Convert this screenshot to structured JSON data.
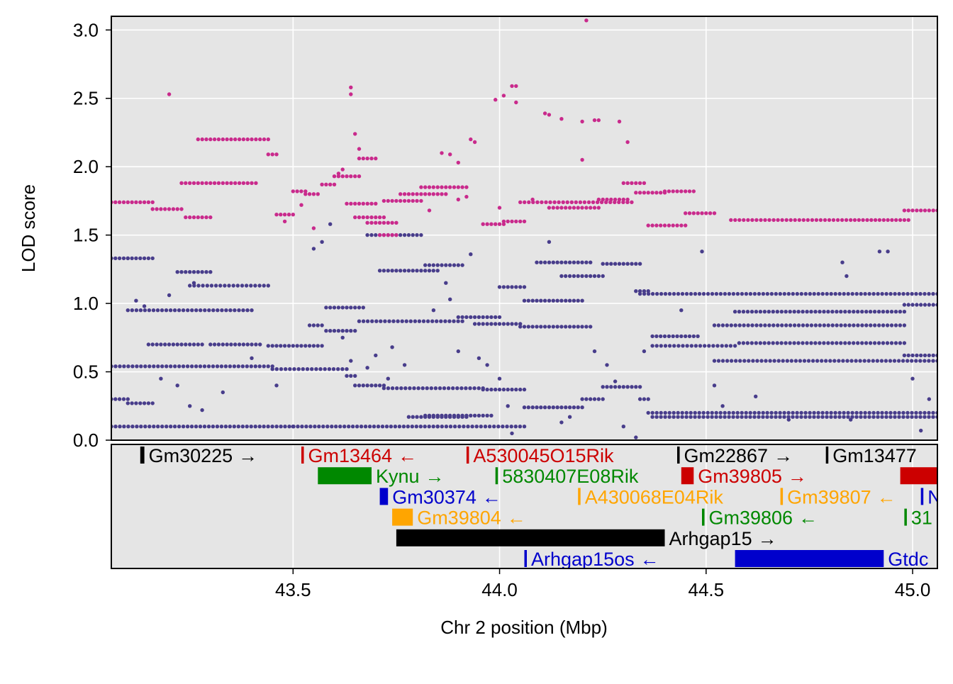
{
  "chart_data": [
    {
      "type": "scatter",
      "panel": "lod",
      "xlabel": "Chr 2 position (Mbp)",
      "ylabel": "LOD score",
      "xlim": [
        43.06,
        45.06
      ],
      "ylim": [
        0,
        3.1
      ],
      "x_ticks": [
        "43.5",
        "44.0",
        "44.5",
        "45.0"
      ],
      "y_ticks": [
        "0.0",
        "0.5",
        "1.0",
        "1.5",
        "2.0",
        "2.5",
        "3.0"
      ],
      "grid": true,
      "background": "#e5e5e5",
      "colors": {
        "highlight": "#c92a8c",
        "other": "#483d8b"
      },
      "series": [
        {
          "color": "#c92a8c",
          "segments": [
            [
              43.06,
              43.16,
              1.74
            ],
            [
              43.16,
              43.23,
              1.69
            ],
            [
              43.23,
              43.31,
              1.88
            ],
            [
              43.24,
              43.3,
              1.63
            ],
            [
              43.27,
              43.44,
              2.2
            ],
            [
              43.32,
              43.41,
              1.88
            ],
            [
              43.44,
              43.46,
              2.09
            ],
            [
              43.46,
              43.5,
              1.65
            ],
            [
              43.5,
              43.53,
              1.82
            ],
            [
              43.53,
              43.56,
              1.8
            ],
            [
              43.57,
              43.6,
              1.87
            ],
            [
              43.6,
              43.66,
              1.93
            ],
            [
              43.63,
              43.7,
              1.73
            ],
            [
              43.65,
              43.72,
              1.63
            ],
            [
              43.66,
              43.7,
              2.06
            ],
            [
              43.68,
              43.75,
              1.59
            ],
            [
              43.71,
              43.75,
              1.5
            ],
            [
              43.72,
              43.81,
              1.75
            ],
            [
              43.76,
              43.87,
              1.8
            ],
            [
              43.81,
              43.92,
              1.85
            ],
            [
              43.96,
              44.01,
              1.58
            ],
            [
              44.01,
              44.06,
              1.6
            ],
            [
              44.05,
              44.32,
              1.74
            ],
            [
              44.12,
              44.24,
              1.7
            ],
            [
              44.24,
              44.31,
              1.76
            ],
            [
              44.3,
              44.35,
              1.88
            ],
            [
              44.33,
              44.4,
              1.81
            ],
            [
              44.36,
              44.45,
              1.57
            ],
            [
              44.4,
              44.47,
              1.82
            ],
            [
              44.45,
              44.52,
              1.66
            ],
            [
              44.56,
              44.85,
              1.61
            ],
            [
              44.86,
              44.99,
              1.61
            ],
            [
              44.98,
              45.06,
              1.68
            ]
          ],
          "points": [
            [
              43.2,
              2.53
            ],
            [
              43.64,
              2.58
            ],
            [
              43.64,
              2.53
            ],
            [
              43.65,
              2.24
            ],
            [
              43.66,
              2.13
            ],
            [
              43.86,
              2.1
            ],
            [
              43.88,
              2.09
            ],
            [
              43.9,
              2.03
            ],
            [
              43.93,
              2.2
            ],
            [
              43.94,
              2.18
            ],
            [
              43.99,
              2.49
            ],
            [
              44.01,
              2.52
            ],
            [
              44.03,
              2.59
            ],
            [
              44.04,
              2.59
            ],
            [
              44.04,
              2.47
            ],
            [
              44.11,
              2.39
            ],
            [
              44.12,
              2.38
            ],
            [
              44.15,
              2.35
            ],
            [
              44.2,
              2.33
            ],
            [
              44.23,
              2.34
            ],
            [
              44.24,
              2.34
            ],
            [
              44.29,
              2.33
            ],
            [
              44.31,
              2.18
            ],
            [
              44.21,
              3.07
            ],
            [
              44.2,
              2.05
            ],
            [
              43.48,
              1.6
            ],
            [
              43.52,
              1.72
            ],
            [
              43.55,
              1.55
            ],
            [
              43.61,
              1.95
            ],
            [
              43.62,
              1.98
            ],
            [
              43.83,
              1.68
            ],
            [
              43.9,
              1.76
            ],
            [
              43.92,
              1.78
            ],
            [
              44.0,
              1.7
            ],
            [
              44.08,
              1.76
            ]
          ]
        },
        {
          "color": "#483d8b",
          "segments": [
            [
              43.06,
              43.45,
              0.54
            ],
            [
              43.45,
              43.63,
              0.52
            ],
            [
              43.63,
              43.65,
              0.47
            ],
            [
              43.65,
              43.72,
              0.4
            ],
            [
              43.72,
              43.96,
              0.38
            ],
            [
              43.96,
              44.06,
              0.37
            ],
            [
              44.06,
              44.2,
              0.24
            ],
            [
              44.2,
              44.25,
              0.3
            ],
            [
              44.25,
              44.34,
              0.39
            ],
            [
              44.34,
              44.36,
              0.3
            ],
            [
              44.36,
              45.06,
              0.2
            ],
            [
              43.06,
              43.85,
              0.1
            ],
            [
              43.85,
              44.06,
              0.1
            ],
            [
              43.06,
              43.1,
              1.33
            ],
            [
              43.1,
              43.16,
              1.33
            ],
            [
              43.22,
              43.3,
              1.23
            ],
            [
              43.25,
              43.44,
              1.13
            ],
            [
              43.1,
              43.4,
              0.95
            ],
            [
              43.15,
              43.28,
              0.7
            ],
            [
              43.3,
              43.42,
              0.7
            ],
            [
              43.06,
              43.1,
              0.3
            ],
            [
              43.1,
              43.16,
              0.27
            ],
            [
              43.44,
              43.57,
              0.69
            ],
            [
              43.54,
              43.57,
              0.84
            ],
            [
              43.58,
              43.65,
              0.8
            ],
            [
              43.58,
              43.67,
              0.97
            ],
            [
              43.66,
              43.91,
              0.87
            ],
            [
              43.71,
              43.85,
              1.24
            ],
            [
              43.68,
              43.81,
              1.5
            ],
            [
              43.82,
              43.91,
              1.28
            ],
            [
              43.78,
              43.92,
              0.17
            ],
            [
              43.82,
              43.98,
              0.18
            ],
            [
              43.9,
              44.0,
              0.9
            ],
            [
              43.94,
              44.05,
              0.85
            ],
            [
              44.05,
              44.22,
              0.83
            ],
            [
              44.0,
              44.06,
              1.12
            ],
            [
              44.06,
              44.2,
              1.02
            ],
            [
              44.09,
              44.22,
              1.3
            ],
            [
              44.15,
              44.25,
              1.2
            ],
            [
              44.25,
              44.34,
              1.29
            ],
            [
              44.33,
              44.36,
              1.09
            ],
            [
              44.34,
              45.06,
              1.07
            ],
            [
              44.37,
              44.48,
              0.76
            ],
            [
              44.37,
              44.57,
              0.69
            ],
            [
              44.52,
              44.98,
              0.84
            ],
            [
              44.58,
              44.98,
              0.71
            ],
            [
              44.52,
              45.06,
              0.58
            ],
            [
              44.57,
              44.98,
              0.94
            ],
            [
              44.98,
              45.06,
              0.99
            ],
            [
              44.98,
              45.06,
              0.62
            ],
            [
              44.37,
              45.06,
              0.17
            ]
          ],
          "points": [
            [
              43.2,
              1.06
            ],
            [
              43.26,
              1.15
            ],
            [
              43.14,
              0.98
            ],
            [
              43.12,
              1.02
            ],
            [
              43.18,
              0.45
            ],
            [
              43.22,
              0.4
            ],
            [
              43.25,
              0.25
            ],
            [
              43.28,
              0.22
            ],
            [
              43.33,
              0.35
            ],
            [
              43.4,
              0.6
            ],
            [
              43.46,
              0.4
            ],
            [
              43.5,
              0.1
            ],
            [
              43.55,
              1.4
            ],
            [
              43.57,
              1.45
            ],
            [
              43.59,
              1.58
            ],
            [
              43.62,
              0.75
            ],
            [
              43.64,
              0.58
            ],
            [
              43.68,
              0.53
            ],
            [
              43.7,
              0.62
            ],
            [
              43.73,
              0.45
            ],
            [
              43.74,
              0.68
            ],
            [
              43.77,
              0.55
            ],
            [
              43.84,
              0.95
            ],
            [
              43.87,
              1.15
            ],
            [
              43.88,
              1.03
            ],
            [
              43.9,
              0.65
            ],
            [
              43.93,
              1.36
            ],
            [
              43.95,
              0.6
            ],
            [
              43.97,
              0.55
            ],
            [
              44.0,
              0.45
            ],
            [
              44.02,
              0.25
            ],
            [
              44.03,
              0.05
            ],
            [
              44.12,
              1.45
            ],
            [
              44.15,
              0.13
            ],
            [
              44.17,
              0.17
            ],
            [
              44.23,
              0.65
            ],
            [
              44.26,
              0.55
            ],
            [
              44.28,
              0.43
            ],
            [
              44.3,
              0.1
            ],
            [
              44.33,
              0.02
            ],
            [
              44.35,
              0.65
            ],
            [
              44.44,
              0.95
            ],
            [
              44.49,
              1.38
            ],
            [
              44.52,
              0.4
            ],
            [
              44.54,
              0.25
            ],
            [
              44.62,
              0.32
            ],
            [
              44.7,
              0.15
            ],
            [
              44.83,
              1.3
            ],
            [
              44.84,
              1.2
            ],
            [
              44.85,
              0.15
            ],
            [
              44.92,
              1.38
            ],
            [
              44.94,
              1.38
            ],
            [
              45.0,
              0.45
            ],
            [
              45.02,
              0.07
            ],
            [
              45.04,
              0.3
            ]
          ]
        }
      ]
    },
    {
      "type": "table",
      "panel": "genes",
      "colors": {
        "black": "#000000",
        "red": "#cc0000",
        "green": "#008800",
        "blue": "#0000cc",
        "orange": "#ffa500"
      },
      "genes": [
        {
          "name": "Gm30225",
          "arrow": "→",
          "start": 43.13,
          "end": 43.14,
          "row": 0,
          "color": "#000000"
        },
        {
          "name": "Gm13464",
          "arrow": "←",
          "start": 43.52,
          "end": 43.525,
          "row": 0,
          "color": "#cc0000"
        },
        {
          "name": "A530045O15Rik",
          "arrow": "",
          "start": 43.92,
          "end": 43.925,
          "row": 0,
          "color": "#cc0000"
        },
        {
          "name": "Gm22867",
          "arrow": "→",
          "start": 44.43,
          "end": 44.435,
          "row": 0,
          "color": "#000000"
        },
        {
          "name": "Gm13477",
          "arrow": "",
          "start": 44.79,
          "end": 44.795,
          "row": 0,
          "color": "#000000"
        },
        {
          "name": "Kynu",
          "arrow": "→",
          "start": 43.56,
          "end": 43.69,
          "row": 1,
          "color": "#008800"
        },
        {
          "name": "5830407E08Rik",
          "arrow": "",
          "start": 43.99,
          "end": 43.995,
          "row": 1,
          "color": "#008800"
        },
        {
          "name": "Gm39805",
          "arrow": "→",
          "start": 44.44,
          "end": 44.47,
          "row": 1,
          "color": "#cc0000"
        },
        {
          "name": "",
          "arrow": "",
          "start": 44.97,
          "end": 45.06,
          "row": 1,
          "color": "#cc0000"
        },
        {
          "name": "Gm30374",
          "arrow": "←",
          "start": 43.71,
          "end": 43.73,
          "row": 2,
          "color": "#0000cc"
        },
        {
          "name": "A430068E04Rik",
          "arrow": "",
          "start": 44.19,
          "end": 44.195,
          "row": 2,
          "color": "#ffa500"
        },
        {
          "name": "Gm39807",
          "arrow": "←",
          "start": 44.68,
          "end": 44.685,
          "row": 2,
          "color": "#ffa500"
        },
        {
          "name": "N",
          "arrow": "",
          "start": 45.02,
          "end": 45.025,
          "row": 2,
          "color": "#0000cc"
        },
        {
          "name": "Gm39804",
          "arrow": "←",
          "start": 43.74,
          "end": 43.79,
          "row": 3,
          "color": "#ffa500"
        },
        {
          "name": "Gm39806",
          "arrow": "←",
          "start": 44.49,
          "end": 44.495,
          "row": 3,
          "color": "#008800"
        },
        {
          "name": "31",
          "arrow": "",
          "start": 44.98,
          "end": 44.985,
          "row": 3,
          "color": "#008800"
        },
        {
          "name": "Arhgap15",
          "arrow": "→",
          "start": 43.75,
          "end": 44.4,
          "row": 4,
          "color": "#000000"
        },
        {
          "name": "Arhgap15os",
          "arrow": "←",
          "start": 44.06,
          "end": 44.065,
          "row": 5,
          "color": "#0000cc"
        },
        {
          "name": "Gtdc",
          "arrow": "",
          "start": 44.57,
          "end": 44.93,
          "row": 5,
          "color": "#0000cc"
        }
      ]
    }
  ]
}
